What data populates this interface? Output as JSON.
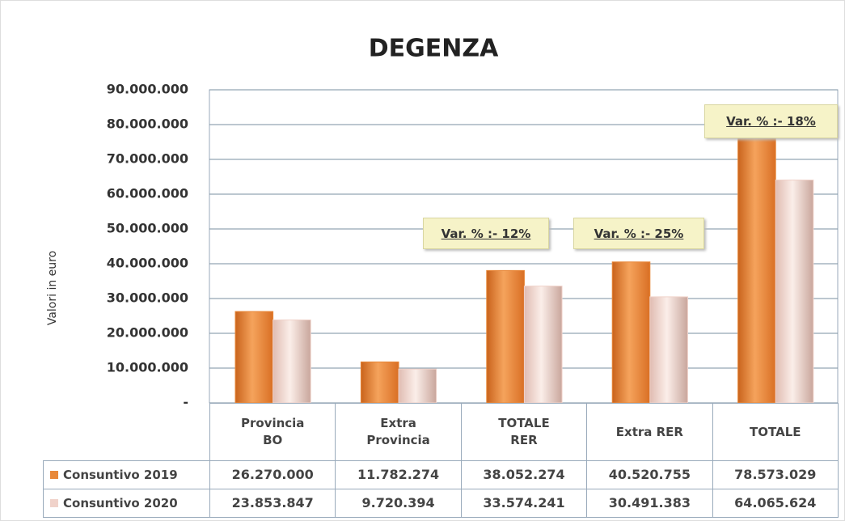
{
  "chart_data": {
    "type": "bar",
    "title": "DEGENZA",
    "y_label": "Valori in euro",
    "categories": [
      "Provincia\nBO",
      "Extra\nProvincia",
      "TOTALE\nRER",
      "Extra RER",
      "TOTALE"
    ],
    "series": [
      {
        "name": "Consuntivo 2019",
        "color": "#e8883a",
        "values": [
          26270000,
          11782274,
          38052274,
          40520755,
          78573029
        ],
        "value_labels": [
          "26.270.000",
          "11.782.274",
          "38.052.274",
          "40.520.755",
          "78.573.029"
        ]
      },
      {
        "name": "Consuntivo 2020",
        "color": "#f0d2ca",
        "values": [
          23853847,
          9720394,
          33574241,
          30491383,
          64065624
        ],
        "value_labels": [
          "23.853.847",
          "9.720.394",
          "33.574.241",
          "30.491.383",
          "64.065.624"
        ]
      }
    ],
    "ylim": [
      0,
      90000000
    ],
    "yticks": [
      {
        "value": 0,
        "label": "-"
      },
      {
        "value": 10000000,
        "label": "10.000.000"
      },
      {
        "value": 20000000,
        "label": "20.000.000"
      },
      {
        "value": 30000000,
        "label": "30.000.000"
      },
      {
        "value": 40000000,
        "label": "40.000.000"
      },
      {
        "value": 50000000,
        "label": "50.000.000"
      },
      {
        "value": 60000000,
        "label": "60.000.000"
      },
      {
        "value": 70000000,
        "label": "70.000.000"
      },
      {
        "value": 80000000,
        "label": "80.000.000"
      },
      {
        "value": 90000000,
        "label": "90.000.000"
      }
    ],
    "grid": true,
    "annotations": [
      "Var. % :- 12%",
      "Var. % :- 25%",
      "Var. % :- 18%"
    ]
  }
}
